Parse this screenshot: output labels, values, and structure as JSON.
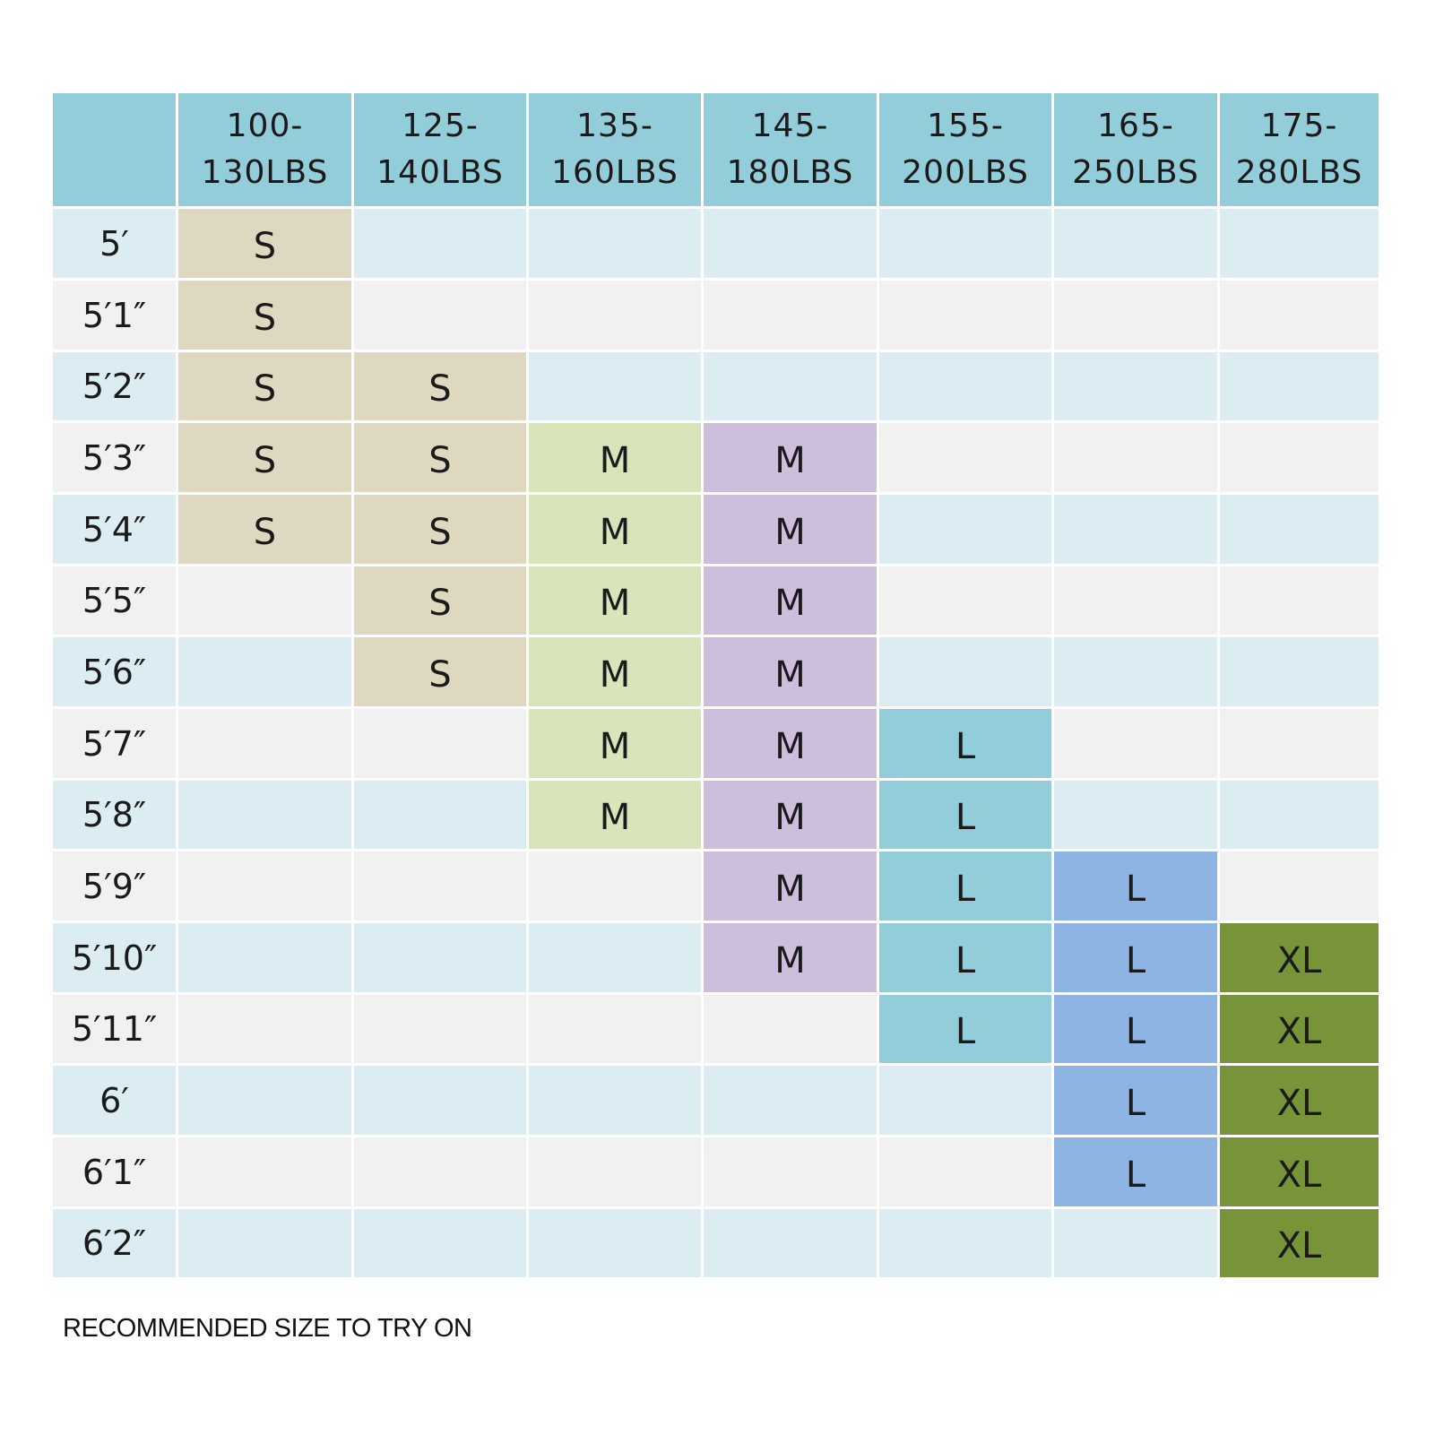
{
  "chart_data": {
    "type": "table",
    "columns": [
      [
        "100-",
        "130LBS"
      ],
      [
        "125-",
        "140LBS"
      ],
      [
        "135-",
        "160LBS"
      ],
      [
        "145-",
        "180LBS"
      ],
      [
        "155-",
        "200LBS"
      ],
      [
        "165-",
        "250LBS"
      ],
      [
        "175-",
        "280LBS"
      ]
    ],
    "rows": [
      "5′",
      "5′1″",
      "5′2″",
      "5′3″",
      "5′4″",
      "5′5″",
      "5′6″",
      "5′7″",
      "5′8″",
      "5′9″",
      "5′10″",
      "5′11″",
      "6′",
      "6′1″",
      "6′2″"
    ],
    "cells": [
      [
        "S",
        "",
        "",
        "",
        "",
        "",
        ""
      ],
      [
        "S",
        "",
        "",
        "",
        "",
        "",
        ""
      ],
      [
        "S",
        "S",
        "",
        "",
        "",
        "",
        ""
      ],
      [
        "S",
        "S",
        "M",
        "M",
        "",
        "",
        ""
      ],
      [
        "S",
        "S",
        "M",
        "M",
        "",
        "",
        ""
      ],
      [
        "",
        "S",
        "M",
        "M",
        "",
        "",
        ""
      ],
      [
        "",
        "S",
        "M",
        "M",
        "",
        "",
        ""
      ],
      [
        "",
        "",
        "M",
        "M",
        "L",
        "",
        ""
      ],
      [
        "",
        "",
        "M",
        "M",
        "L",
        "",
        ""
      ],
      [
        "",
        "",
        "",
        "M",
        "L",
        "L",
        ""
      ],
      [
        "",
        "",
        "",
        "M",
        "L",
        "L",
        "XL"
      ],
      [
        "",
        "",
        "",
        "",
        "L",
        "L",
        "XL"
      ],
      [
        "",
        "",
        "",
        "",
        "",
        "L",
        "XL"
      ],
      [
        "",
        "",
        "",
        "",
        "",
        "L",
        "XL"
      ],
      [
        "",
        "",
        "",
        "",
        "",
        "",
        "XL"
      ]
    ]
  },
  "colors": {
    "header": "#93cdd9",
    "row_blue": "#dbedf3",
    "row_gray": "#f1f1f1",
    "S": "#dfd8c1",
    "M": "#d8e5bb",
    "M_purple": "#cdbfdc",
    "L_teal": "#93cdd9",
    "L_blue": "#8db4e2",
    "XL": "#779438"
  },
  "footer": {
    "note": "RECOMMENDED SIZE TO TRY ON"
  }
}
